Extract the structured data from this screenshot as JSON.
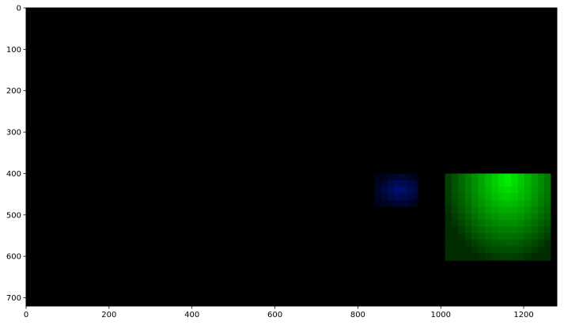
{
  "chart_data": {
    "type": "heatmap",
    "title": "",
    "xlabel": "",
    "ylabel": "",
    "xlim": [
      0,
      1280
    ],
    "ylim": [
      720,
      0
    ],
    "x_ticks": [
      0,
      200,
      400,
      600,
      800,
      1000,
      1200
    ],
    "y_ticks": [
      0,
      100,
      200,
      300,
      400,
      500,
      600,
      700
    ],
    "background_color": "#000000",
    "grid": false,
    "blobs": [
      {
        "channel": "blue",
        "x_range": [
          840,
          945
        ],
        "y_range": [
          400,
          480
        ],
        "peak_color": "#00107a",
        "peak": [
          900,
          440
        ]
      },
      {
        "channel": "green",
        "x_range": [
          1010,
          1265
        ],
        "y_range": [
          400,
          610
        ],
        "peak_color": "#00f500",
        "peak": [
          1160,
          415
        ]
      }
    ]
  }
}
